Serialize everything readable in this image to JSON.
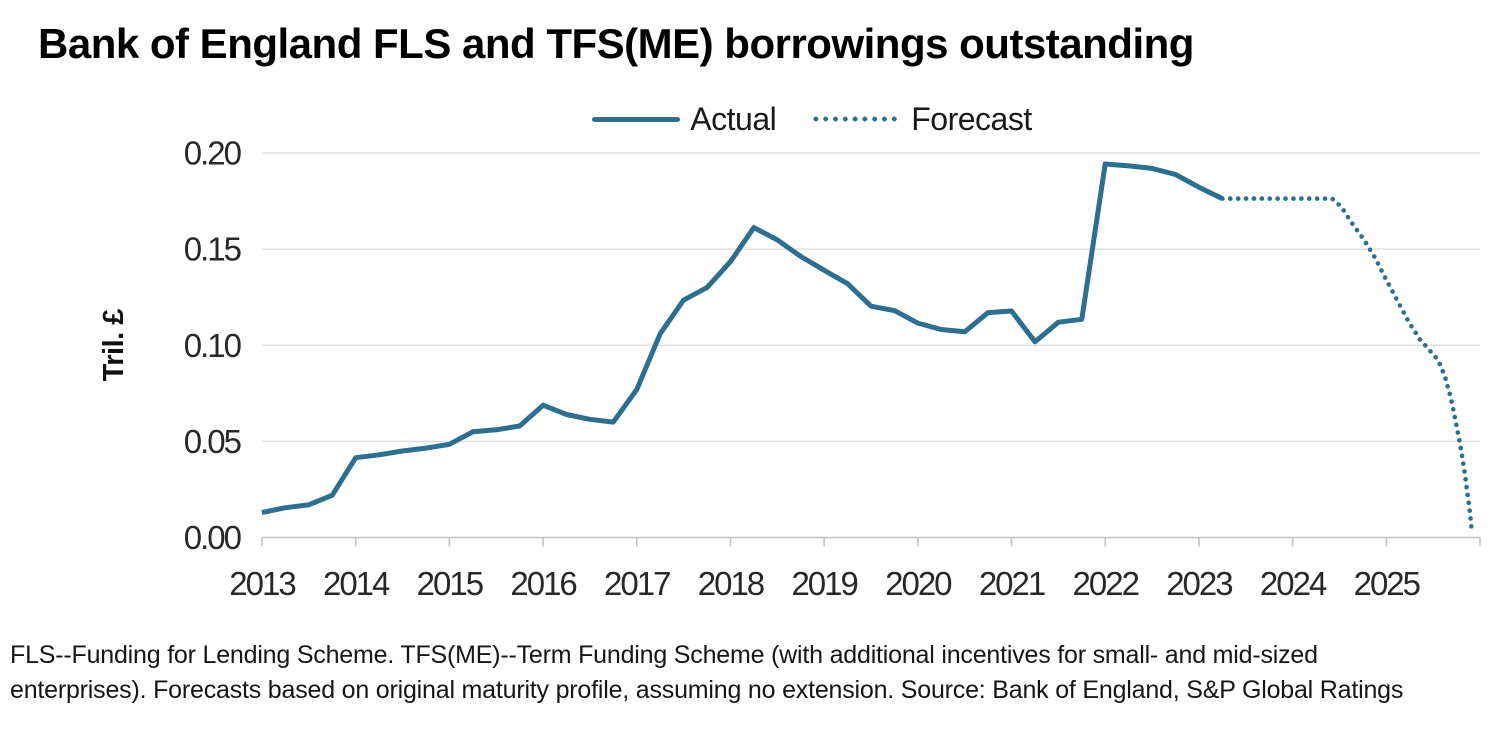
{
  "title": "Bank of England FLS and TFS(ME) borrowings outstanding",
  "footnote": [
    "FLS--Funding for Lending Scheme. TFS(ME)--Term Funding Scheme (with additional incentives for small- and mid-sized",
    "enterprises). Forecasts based on original maturity profile, assuming no extension. Source: Bank of England, S&P Global Ratings"
  ],
  "colors": {
    "line": "#2e6e8e",
    "grid": "#e0e0e0",
    "axis": "#c4c4c4",
    "tick_text": "#282828",
    "text": "#111111"
  },
  "chart_data": {
    "type": "line",
    "title": "Bank of England FLS and TFS(ME) borrowings outstanding",
    "ylabel": "Tril. £",
    "xlabel": "",
    "ylim": [
      0,
      0.2
    ],
    "yticks": [
      0,
      0.05,
      0.1,
      0.15,
      0.2
    ],
    "ytick_labels": [
      "0.00",
      "0.05",
      "0.10",
      "0.15",
      "0.20"
    ],
    "xlim": [
      2013,
      2026
    ],
    "xticks": [
      2013,
      2014,
      2015,
      2016,
      2017,
      2018,
      2019,
      2020,
      2021,
      2022,
      2023,
      2024,
      2025,
      2026
    ],
    "xtick_labels": [
      "2013",
      "2014",
      "2015",
      "2016",
      "2017",
      "2018",
      "2019",
      "2020",
      "2021",
      "2022",
      "2023",
      "2024",
      "2025"
    ],
    "grid": "horizontal",
    "legend_position": "top-center",
    "series": [
      {
        "name": "Actual",
        "style": "solid",
        "points": [
          [
            2013.0,
            0.013
          ],
          [
            2013.25,
            0.0155
          ],
          [
            2013.5,
            0.017
          ],
          [
            2013.75,
            0.022
          ],
          [
            2014.0,
            0.0415
          ],
          [
            2014.25,
            0.043
          ],
          [
            2014.5,
            0.045
          ],
          [
            2014.75,
            0.0465
          ],
          [
            2015.0,
            0.0485
          ],
          [
            2015.25,
            0.055
          ],
          [
            2015.5,
            0.056
          ],
          [
            2015.75,
            0.058
          ],
          [
            2016.0,
            0.0688
          ],
          [
            2016.25,
            0.064
          ],
          [
            2016.5,
            0.0615
          ],
          [
            2016.75,
            0.06
          ],
          [
            2017.0,
            0.077
          ],
          [
            2017.25,
            0.106
          ],
          [
            2017.5,
            0.1235
          ],
          [
            2017.75,
            0.13
          ],
          [
            2018.0,
            0.1435
          ],
          [
            2018.25,
            0.1612
          ],
          [
            2018.5,
            0.1548
          ],
          [
            2018.75,
            0.1462
          ],
          [
            2019.0,
            0.139
          ],
          [
            2019.25,
            0.132
          ],
          [
            2019.5,
            0.1203
          ],
          [
            2019.75,
            0.118
          ],
          [
            2020.0,
            0.1115
          ],
          [
            2020.25,
            0.1082
          ],
          [
            2020.5,
            0.107
          ],
          [
            2020.75,
            0.117
          ],
          [
            2021.0,
            0.1178
          ],
          [
            2021.25,
            0.1018
          ],
          [
            2021.5,
            0.112
          ],
          [
            2021.75,
            0.1135
          ],
          [
            2022.0,
            0.1943
          ],
          [
            2022.25,
            0.1933
          ],
          [
            2022.5,
            0.192
          ],
          [
            2022.75,
            0.1888
          ],
          [
            2023.0,
            0.1822
          ],
          [
            2023.25,
            0.1763
          ]
        ]
      },
      {
        "name": "Forecast",
        "style": "dotted",
        "points": [
          [
            2023.25,
            0.1763
          ],
          [
            2023.5,
            0.1763
          ],
          [
            2023.75,
            0.1763
          ],
          [
            2024.0,
            0.1763
          ],
          [
            2024.25,
            0.1763
          ],
          [
            2024.42,
            0.1763
          ],
          [
            2024.52,
            0.172
          ],
          [
            2024.64,
            0.163
          ],
          [
            2024.76,
            0.155
          ],
          [
            2024.88,
            0.1455
          ],
          [
            2025.0,
            0.134
          ],
          [
            2025.12,
            0.123
          ],
          [
            2025.24,
            0.112
          ],
          [
            2025.36,
            0.103
          ],
          [
            2025.46,
            0.0975
          ],
          [
            2025.53,
            0.0935
          ],
          [
            2025.58,
            0.0895
          ],
          [
            2025.63,
            0.083
          ],
          [
            2025.67,
            0.076
          ],
          [
            2025.7,
            0.07
          ],
          [
            2025.73,
            0.063
          ],
          [
            2025.76,
            0.0555
          ],
          [
            2025.79,
            0.048
          ],
          [
            2025.81,
            0.042
          ],
          [
            2025.83,
            0.036
          ],
          [
            2025.85,
            0.029
          ],
          [
            2025.87,
            0.0215
          ],
          [
            2025.89,
            0.014
          ],
          [
            2025.905,
            0.007
          ],
          [
            2025.915,
            0.002
          ]
        ]
      }
    ]
  }
}
